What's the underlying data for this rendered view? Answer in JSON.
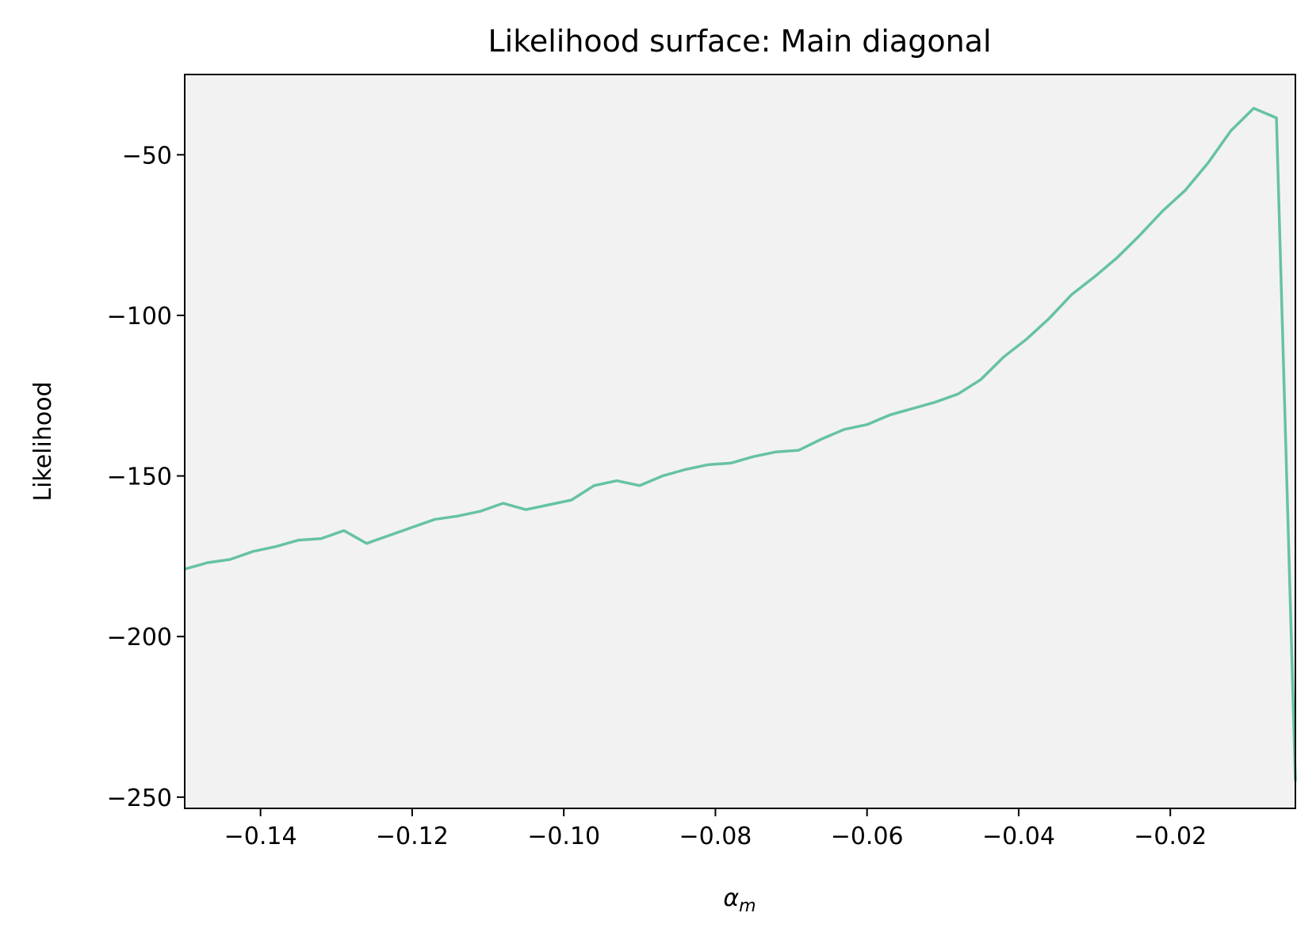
{
  "chart_data": {
    "type": "line",
    "title": "Likelihood surface: Main diagonal",
    "xlabel_symbol": "α",
    "xlabel_subscript": "m",
    "ylabel": "Likelihood",
    "xlim": [
      -0.15,
      -0.0035
    ],
    "ylim": [
      -253.5,
      -25
    ],
    "grid": false,
    "background_color": "#f2f2f2",
    "line_color": "#66c2a5",
    "xticks": [
      -0.14,
      -0.12,
      -0.1,
      -0.08,
      -0.06,
      -0.04,
      -0.02
    ],
    "xtick_labels": [
      "−0.14",
      "−0.12",
      "−0.10",
      "−0.08",
      "−0.06",
      "−0.04",
      "−0.02"
    ],
    "yticks": [
      -50,
      -100,
      -150,
      -200,
      -250
    ],
    "ytick_labels": [
      "−50",
      "−100",
      "−150",
      "−200",
      "−250"
    ],
    "series": [
      {
        "x": [
          -0.15,
          -0.147,
          -0.144,
          -0.141,
          -0.138,
          -0.135,
          -0.132,
          -0.129,
          -0.126,
          -0.123,
          -0.12,
          -0.117,
          -0.114,
          -0.111,
          -0.108,
          -0.105,
          -0.102,
          -0.099,
          -0.096,
          -0.093,
          -0.09,
          -0.087,
          -0.084,
          -0.081,
          -0.078,
          -0.075,
          -0.072,
          -0.069,
          -0.066,
          -0.063,
          -0.06,
          -0.057,
          -0.054,
          -0.051,
          -0.048,
          -0.045,
          -0.042,
          -0.039,
          -0.036,
          -0.033,
          -0.03,
          -0.027,
          -0.024,
          -0.021,
          -0.018,
          -0.015,
          -0.012,
          -0.009,
          -0.006,
          -0.0035
        ],
        "y": [
          -179,
          -177,
          -176,
          -173.5,
          -172,
          -170,
          -169.5,
          -167,
          -171,
          -168.5,
          -166,
          -163.5,
          -162.5,
          -161,
          -158.5,
          -160.5,
          -159,
          -157.5,
          -153,
          -151.5,
          -153,
          -150,
          -148,
          -146.5,
          -146,
          -144,
          -142.5,
          -142,
          -138.5,
          -135.5,
          -134,
          -131,
          -129,
          -127,
          -124.5,
          -120,
          -113,
          -107.5,
          -101,
          -93.5,
          -88,
          -82,
          -75,
          -67.5,
          -61,
          -52.5,
          -42.5,
          -35.5,
          -38.5,
          -245
        ]
      }
    ]
  }
}
